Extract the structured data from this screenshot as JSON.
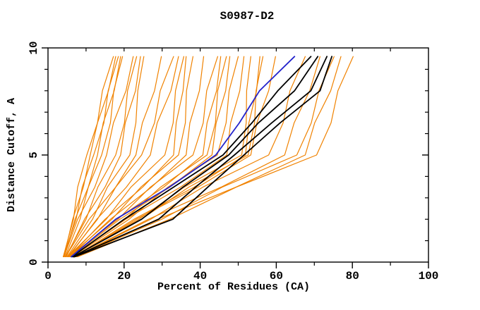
{
  "figure": {
    "title": "S0987-D2"
  },
  "chart_data": {
    "type": "line",
    "title": "S0987-D2",
    "xlabel": "Percent of Residues (CA)",
    "ylabel": "Distance Cutoff, A",
    "xlim": [
      0,
      100
    ],
    "ylim": [
      0,
      10
    ],
    "x_major_ticks": [
      0,
      20,
      40,
      60,
      80,
      100
    ],
    "x_minor_ticks": [
      10,
      30,
      50,
      70,
      90
    ],
    "y_major_ticks": [
      0,
      5,
      10
    ],
    "y_minor_ticks": [
      1,
      2,
      3,
      4,
      6,
      7,
      8,
      9
    ],
    "grid": false,
    "legend": false,
    "colors": {
      "orange": "#f08200",
      "black": "#000000",
      "blue": "#2323cc"
    },
    "series": [
      {
        "name": "orange-01",
        "color": "orange",
        "width": 1.2,
        "points": [
          [
            4,
            0.25
          ],
          [
            6.7,
            2
          ],
          [
            7.8,
            3.5
          ],
          [
            10.2,
            5
          ],
          [
            13,
            6.5
          ],
          [
            14.3,
            8
          ],
          [
            17.2,
            9.6
          ]
        ]
      },
      {
        "name": "orange-02",
        "color": "orange",
        "width": 1.2,
        "points": [
          [
            4.2,
            0.25
          ],
          [
            6.5,
            2
          ],
          [
            9.3,
            3.5
          ],
          [
            11.1,
            5
          ],
          [
            13,
            6.5
          ],
          [
            15.9,
            8
          ],
          [
            17.8,
            9.6
          ]
        ]
      },
      {
        "name": "orange-03",
        "color": "orange",
        "width": 1.2,
        "points": [
          [
            4,
            0.25
          ],
          [
            7.4,
            2
          ],
          [
            9,
            3.5
          ],
          [
            12,
            5
          ],
          [
            14.7,
            6.5
          ],
          [
            15.8,
            8
          ],
          [
            18.5,
            9.6
          ]
        ]
      },
      {
        "name": "orange-04",
        "color": "orange",
        "width": 1.2,
        "points": [
          [
            4.3,
            0.25
          ],
          [
            7.1,
            2
          ],
          [
            10.6,
            3.5
          ],
          [
            13,
            5
          ],
          [
            14.5,
            6.5
          ],
          [
            17.4,
            8
          ],
          [
            19.1,
            9.6
          ]
        ]
      },
      {
        "name": "orange-05",
        "color": "orange",
        "width": 1.2,
        "points": [
          [
            4.5,
            0.25
          ],
          [
            8.4,
            2
          ],
          [
            10.6,
            3.5
          ],
          [
            14.1,
            5
          ],
          [
            16.4,
            6.5
          ],
          [
            17.3,
            8
          ],
          [
            19.6,
            9.6
          ]
        ]
      },
      {
        "name": "orange-06",
        "color": "orange",
        "width": 1.2,
        "points": [
          [
            4.2,
            0.25
          ],
          [
            7.8,
            2
          ],
          [
            12.3,
            3.5
          ],
          [
            15.4,
            5
          ],
          [
            17.2,
            6.5
          ],
          [
            20.5,
            8
          ],
          [
            22.4,
            9.6
          ]
        ]
      },
      {
        "name": "orange-07",
        "color": "orange",
        "width": 1.2,
        "points": [
          [
            4.6,
            0.25
          ],
          [
            10,
            2
          ],
          [
            13.1,
            3.5
          ],
          [
            17.8,
            5
          ],
          [
            20.1,
            6.5
          ],
          [
            20.9,
            8
          ],
          [
            23.3,
            9.6
          ]
        ]
      },
      {
        "name": "orange-08",
        "color": "orange",
        "width": 1.2,
        "points": [
          [
            4.8,
            0.25
          ],
          [
            9.6,
            2
          ],
          [
            15,
            3.5
          ],
          [
            19.1,
            5
          ],
          [
            20.3,
            6.5
          ],
          [
            23,
            8
          ],
          [
            24.3,
            9.6
          ]
        ]
      },
      {
        "name": "orange-09",
        "color": "orange",
        "width": 1.2,
        "points": [
          [
            5,
            0.25
          ],
          [
            11.7,
            2
          ],
          [
            15.6,
            3.5
          ],
          [
            21.5,
            5
          ],
          [
            23.1,
            6.5
          ],
          [
            23.6,
            8
          ],
          [
            25.2,
            9.6
          ]
        ]
      },
      {
        "name": "orange-10",
        "color": "orange",
        "width": 1.2,
        "points": [
          [
            4.6,
            0.25
          ],
          [
            10.8,
            2
          ],
          [
            17.8,
            3.5
          ],
          [
            23.1,
            5
          ],
          [
            24.8,
            6.5
          ],
          [
            28,
            8
          ],
          [
            29.8,
            9.6
          ]
        ]
      },
      {
        "name": "orange-11",
        "color": "orange",
        "width": 1.2,
        "points": [
          [
            5.2,
            0.25
          ],
          [
            13,
            2
          ],
          [
            17.8,
            3.5
          ],
          [
            24.6,
            5
          ],
          [
            28,
            6.5
          ],
          [
            29.5,
            8
          ],
          [
            33,
            9.6
          ]
        ]
      },
      {
        "name": "orange-12",
        "color": "orange",
        "width": 1.2,
        "points": [
          [
            5.4,
            0.25
          ],
          [
            12.8,
            2
          ],
          [
            20.6,
            3.5
          ],
          [
            26.9,
            5
          ],
          [
            28.7,
            6.5
          ],
          [
            32.3,
            8
          ],
          [
            34.3,
            9.6
          ]
        ]
      },
      {
        "name": "orange-13",
        "color": "orange",
        "width": 1.2,
        "points": [
          [
            5.2,
            0.25
          ],
          [
            15.3,
            2
          ],
          [
            21.8,
            3.5
          ],
          [
            30.7,
            5
          ],
          [
            32.9,
            6.5
          ],
          [
            33.5,
            8
          ],
          [
            35.7,
            9.6
          ]
        ]
      },
      {
        "name": "orange-14",
        "color": "orange",
        "width": 1.2,
        "points": [
          [
            5.6,
            0.25
          ],
          [
            15,
            2
          ],
          [
            24.9,
            3.5
          ],
          [
            33,
            5
          ],
          [
            33.7,
            6.5
          ],
          [
            35.5,
            8
          ],
          [
            36.3,
            9.6
          ]
        ]
      },
      {
        "name": "orange-15",
        "color": "orange",
        "width": 1.2,
        "points": [
          [
            5.4,
            0.25
          ],
          [
            16.8,
            2
          ],
          [
            24.4,
            3.5
          ],
          [
            34.3,
            5
          ],
          [
            36.1,
            6.5
          ],
          [
            36.4,
            8
          ],
          [
            38.1,
            9.6
          ]
        ]
      },
      {
        "name": "orange-16",
        "color": "orange",
        "width": 1.2,
        "points": [
          [
            5.8,
            0.25
          ],
          [
            16.4,
            2
          ],
          [
            27.2,
            3.5
          ],
          [
            36.3,
            5
          ],
          [
            37.3,
            6.5
          ],
          [
            39.8,
            8
          ],
          [
            40.9,
            9.6
          ]
        ]
      },
      {
        "name": "orange-17",
        "color": "orange",
        "width": 1.2,
        "points": [
          [
            5.6,
            0.25
          ],
          [
            18.4,
            2
          ],
          [
            26.9,
            3.5
          ],
          [
            38.1,
            5
          ],
          [
            40.8,
            6.5
          ],
          [
            41.7,
            8
          ],
          [
            44.6,
            9.6
          ]
        ]
      },
      {
        "name": "orange-18",
        "color": "orange",
        "width": 1.2,
        "points": [
          [
            6,
            0.25
          ],
          [
            18,
            2
          ],
          [
            30.4,
            3.5
          ],
          [
            40.7,
            5
          ],
          [
            41.8,
            6.5
          ],
          [
            44.3,
            8
          ],
          [
            45.4,
            9.6
          ]
        ]
      },
      {
        "name": "orange-19",
        "color": "orange",
        "width": 1.2,
        "points": [
          [
            6.2,
            0.25
          ],
          [
            20.2,
            2
          ],
          [
            29.6,
            3.5
          ],
          [
            41.8,
            5
          ],
          [
            44,
            6.5
          ],
          [
            44.6,
            8
          ],
          [
            46.9,
            9.6
          ]
        ]
      },
      {
        "name": "orange-20",
        "color": "orange",
        "width": 1.2,
        "points": [
          [
            6,
            0.25
          ],
          [
            18.9,
            2
          ],
          [
            32,
            3.5
          ],
          [
            43.1,
            5
          ],
          [
            44.2,
            6.5
          ],
          [
            46.7,
            8
          ],
          [
            47.8,
            9.6
          ]
        ]
      },
      {
        "name": "orange-21",
        "color": "orange",
        "width": 1.2,
        "points": [
          [
            6.4,
            0.25
          ],
          [
            21.3,
            2
          ],
          [
            31.5,
            3.5
          ],
          [
            44.5,
            5
          ],
          [
            46.8,
            6.5
          ],
          [
            47.6,
            8
          ],
          [
            50,
            9.6
          ]
        ]
      },
      {
        "name": "orange-22",
        "color": "orange",
        "width": 1.2,
        "points": [
          [
            6.2,
            0.25
          ],
          [
            20.4,
            2
          ],
          [
            34.8,
            3.5
          ],
          [
            47,
            5
          ],
          [
            48,
            6.5
          ],
          [
            50.4,
            8
          ],
          [
            51.5,
            9.6
          ]
        ]
      },
      {
        "name": "orange-23",
        "color": "orange",
        "width": 1.2,
        "points": [
          [
            6.6,
            0.25
          ],
          [
            23.9,
            2
          ],
          [
            35.8,
            3.5
          ],
          [
            50.9,
            5
          ],
          [
            52.1,
            6.5
          ],
          [
            52.2,
            8
          ],
          [
            53.3,
            9.6
          ]
        ]
      },
      {
        "name": "orange-24",
        "color": "orange",
        "width": 1.2,
        "points": [
          [
            6.8,
            0.25
          ],
          [
            22.6,
            2
          ],
          [
            38.4,
            3.5
          ],
          [
            51.9,
            5
          ],
          [
            52.8,
            6.5
          ],
          [
            54.8,
            8
          ],
          [
            55.7,
            9.6
          ]
        ]
      },
      {
        "name": "orange-25",
        "color": "orange",
        "width": 1.2,
        "points": [
          [
            6.6,
            0.25
          ],
          [
            24.5,
            2
          ],
          [
            37,
            3.5
          ],
          [
            52.6,
            5
          ],
          [
            54.3,
            6.5
          ],
          [
            54.7,
            8
          ],
          [
            56.5,
            9.6
          ]
        ]
      },
      {
        "name": "orange-26",
        "color": "orange",
        "width": 1.2,
        "points": [
          [
            7,
            0.25
          ],
          [
            23.2,
            2
          ],
          [
            39.4,
            3.5
          ],
          [
            53.3,
            5
          ],
          [
            54.9,
            6.5
          ],
          [
            58,
            8
          ],
          [
            59.8,
            9.6
          ]
        ]
      },
      {
        "name": "orange-27",
        "color": "orange",
        "width": 1.2,
        "points": [
          [
            7.2,
            0.25
          ],
          [
            27,
            2
          ],
          [
            40.7,
            3.5
          ],
          [
            58,
            5
          ],
          [
            61.8,
            6.5
          ],
          [
            63.6,
            8
          ],
          [
            67.6,
            9.6
          ]
        ]
      },
      {
        "name": "orange-28",
        "color": "orange",
        "width": 1.2,
        "points": [
          [
            7,
            0.25
          ],
          [
            26.4,
            2
          ],
          [
            45.5,
            3.5
          ],
          [
            62.2,
            5
          ],
          [
            64.7,
            6.5
          ],
          [
            68.8,
            8
          ],
          [
            71.5,
            9.6
          ]
        ]
      },
      {
        "name": "orange-29",
        "color": "orange",
        "width": 1.2,
        "points": [
          [
            7.4,
            0.25
          ],
          [
            29.9,
            2
          ],
          [
            45.8,
            3.5
          ],
          [
            65.4,
            5
          ],
          [
            69.2,
            6.5
          ],
          [
            71.2,
            8
          ],
          [
            75.2,
            9.6
          ]
        ]
      },
      {
        "name": "orange-30",
        "color": "orange",
        "width": 1.2,
        "points": [
          [
            7.6,
            0.25
          ],
          [
            28.8,
            2
          ],
          [
            49.4,
            3.5
          ],
          [
            67.6,
            5
          ],
          [
            70.1,
            6.5
          ],
          [
            74.3,
            8
          ],
          [
            77,
            9.6
          ]
        ]
      },
      {
        "name": "orange-31",
        "color": "orange",
        "width": 1.2,
        "points": [
          [
            7.8,
            0.25
          ],
          [
            32,
            2
          ],
          [
            49.5,
            3.5
          ],
          [
            70.6,
            5
          ],
          [
            74.4,
            6.5
          ],
          [
            76.2,
            8
          ],
          [
            80.2,
            9.6
          ]
        ]
      },
      {
        "name": "black-1",
        "color": "black",
        "width": 1.8,
        "points": [
          [
            6.3,
            0.25
          ],
          [
            20,
            2
          ],
          [
            33,
            3.5
          ],
          [
            46,
            5
          ],
          [
            53.6,
            6.5
          ],
          [
            60.4,
            8
          ],
          [
            69.1,
            9.6
          ]
        ]
      },
      {
        "name": "black-2",
        "color": "black",
        "width": 1.8,
        "points": [
          [
            6.6,
            0.25
          ],
          [
            24.6,
            2
          ],
          [
            35.5,
            3.5
          ],
          [
            47.5,
            5
          ],
          [
            55.3,
            6.5
          ],
          [
            64.8,
            8
          ],
          [
            70.9,
            9.6
          ]
        ]
      },
      {
        "name": "black-3",
        "color": "black",
        "width": 1.8,
        "points": [
          [
            6.8,
            0.25
          ],
          [
            29.1,
            2
          ],
          [
            38.8,
            3.5
          ],
          [
            49,
            5
          ],
          [
            58.8,
            6.5
          ],
          [
            69.1,
            8
          ],
          [
            73.3,
            9.6
          ]
        ]
      },
      {
        "name": "black-4",
        "color": "black",
        "width": 1.8,
        "points": [
          [
            7,
            0.25
          ],
          [
            32.8,
            2
          ],
          [
            42,
            3.5
          ],
          [
            51.5,
            5
          ],
          [
            61,
            6.5
          ],
          [
            71.5,
            8
          ],
          [
            74.6,
            9.6
          ]
        ]
      },
      {
        "name": "blue-1",
        "color": "blue",
        "width": 1.8,
        "points": [
          [
            6.1,
            0.25
          ],
          [
            17.8,
            2
          ],
          [
            31.9,
            3.5
          ],
          [
            44.1,
            5
          ],
          [
            50.3,
            6.5
          ],
          [
            55.6,
            8
          ],
          [
            64.8,
            9.6
          ]
        ]
      }
    ]
  }
}
